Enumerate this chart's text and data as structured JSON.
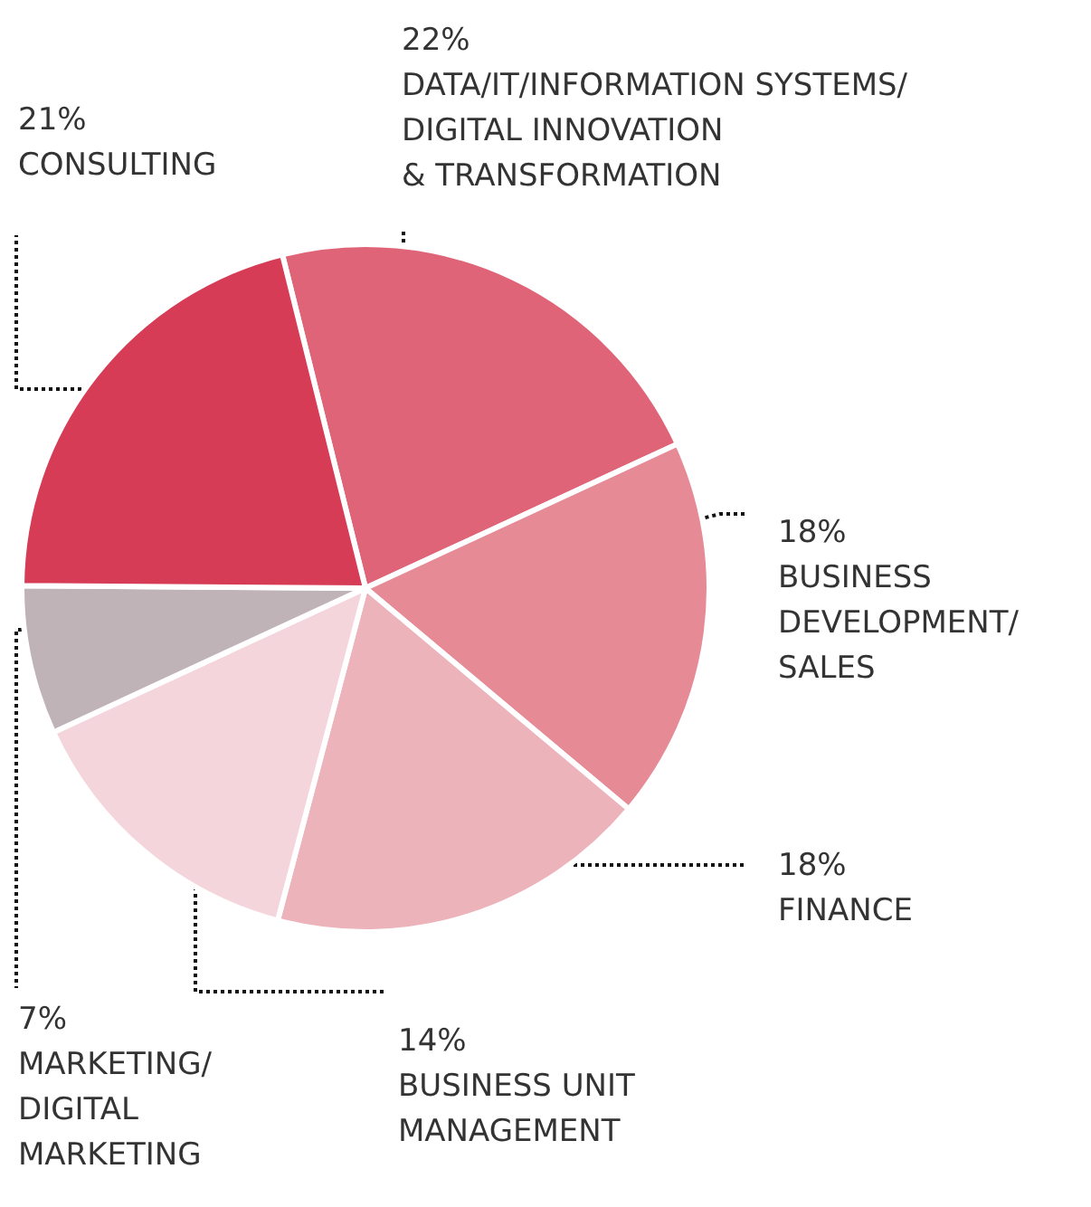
{
  "chart_data": {
    "type": "pie",
    "categories": [
      "DATA/IT/INFORMATION SYSTEMS/\nDIGITAL INNOVATION\n& TRANSFORMATION",
      "BUSINESS\nDEVELOPMENT/\nSALES",
      "FINANCE",
      "BUSINESS UNIT\nMANAGEMENT",
      "MARKETING/\nDIGITAL\nMARKETING",
      "CONSULTING"
    ],
    "values": [
      22,
      18,
      18,
      14,
      7,
      21
    ],
    "value_labels": [
      "22%",
      "18%",
      "18%",
      "14%",
      "7%",
      "21%"
    ],
    "colors": [
      "#e06478",
      "#e68a96",
      "#edb3bb",
      "#f5d5dc",
      "#c0b3b8",
      "#d63c55"
    ],
    "legend": false
  }
}
